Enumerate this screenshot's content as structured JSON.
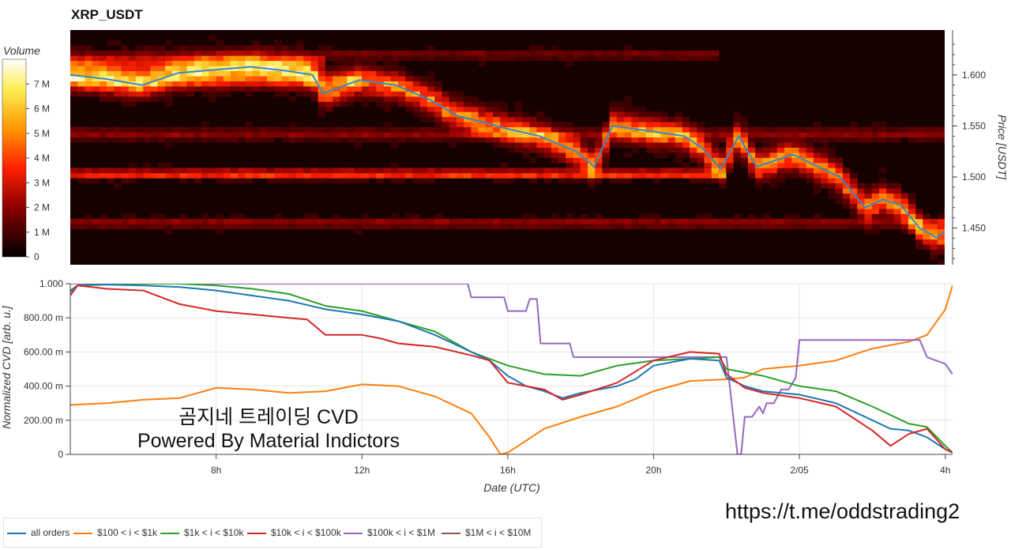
{
  "title": "XRP_USDT",
  "watermark": {
    "line1": "곰지네 트레이딩 CVD",
    "line2": "Powered By Material Indictors"
  },
  "url_text": "https://t.me/oddstrading2",
  "colors": {
    "all_orders": "#1f77b4",
    "s100_1k": "#ff7f0e",
    "s1k_10k": "#2ca02c",
    "s10k_100k": "#d62728",
    "s100k_1m": "#9467bd",
    "s1m_10m": "#8c564b",
    "heatmap_low": "#000000",
    "heatmap_high": "#ffffff"
  },
  "chart_data": [
    {
      "type": "heatmap",
      "title": "XRP_USDT",
      "ylabel": "Price [USDT]",
      "ylim": [
        1.414,
        1.644
      ],
      "yticks": [
        1.45,
        1.5,
        1.55,
        1.6
      ],
      "ytick_labels": [
        "1.450",
        "1.500",
        "1.550",
        "1.600"
      ],
      "colorbar": {
        "label": "Volume",
        "range": [
          0,
          8000000
        ],
        "ticks": [
          0,
          1000000,
          2000000,
          3000000,
          4000000,
          5000000,
          6000000,
          7000000
        ],
        "tick_labels": [
          "0",
          "1 M",
          "2 M",
          "3 M",
          "4 M",
          "5 M",
          "6 M",
          "7 M"
        ]
      },
      "price_series": {
        "x": [
          4.0,
          5.0,
          6.0,
          7.0,
          8.0,
          9.0,
          10.0,
          10.7,
          11.0,
          12.0,
          13.0,
          14.0,
          14.7,
          15.5,
          16.0,
          17.0,
          18.0,
          18.5,
          19.0,
          20.0,
          21.0,
          21.5,
          22.0,
          22.5,
          23.0,
          24.0,
          25.0,
          25.3,
          26.0,
          26.5,
          27.0,
          27.5,
          28.0,
          28.2
        ],
        "y": [
          1.6,
          1.596,
          1.59,
          1.602,
          1.605,
          1.608,
          1.604,
          1.6,
          1.582,
          1.595,
          1.59,
          1.575,
          1.56,
          1.553,
          1.548,
          1.54,
          1.525,
          1.51,
          1.55,
          1.545,
          1.54,
          1.528,
          1.508,
          1.54,
          1.51,
          1.522,
          1.505,
          1.5,
          1.47,
          1.478,
          1.472,
          1.45,
          1.44,
          1.447
        ]
      }
    },
    {
      "type": "line",
      "xlabel": "Date (UTC)",
      "ylabel": "Normalized CVD [arb. u.]",
      "xlim": [
        4.0,
        28.2
      ],
      "ylim": [
        0,
        1
      ],
      "xticks": [
        8,
        12,
        16,
        20,
        24,
        28
      ],
      "xtick_labels": [
        "8h",
        "12h",
        "16h",
        "20h",
        "2/05",
        "4h"
      ],
      "yticks": [
        0,
        0.2,
        0.4,
        0.6,
        0.8,
        1.0
      ],
      "ytick_labels": [
        "0",
        "200.00 m",
        "400.00 m",
        "600.00 m",
        "800.00 m",
        "1.000"
      ],
      "grid": true,
      "legend": "bottom",
      "series": [
        {
          "name": "all orders",
          "color_key": "all_orders",
          "x": [
            4.0,
            4.2,
            5.0,
            6.0,
            7.0,
            8.0,
            9.0,
            10.0,
            11.0,
            12.0,
            13.0,
            14.0,
            15.0,
            15.5,
            16.0,
            16.5,
            17.0,
            17.5,
            18.0,
            19.0,
            19.5,
            20.0,
            21.0,
            21.8,
            22.0,
            22.5,
            23.0,
            24.0,
            25.0,
            26.0,
            26.5,
            27.0,
            27.5,
            28.0,
            28.2
          ],
          "y": [
            0.95,
            0.99,
            0.995,
            0.99,
            0.98,
            0.96,
            0.93,
            0.9,
            0.85,
            0.82,
            0.78,
            0.7,
            0.6,
            0.55,
            0.46,
            0.4,
            0.37,
            0.33,
            0.36,
            0.4,
            0.44,
            0.52,
            0.56,
            0.55,
            0.45,
            0.4,
            0.37,
            0.35,
            0.3,
            0.2,
            0.15,
            0.14,
            0.1,
            0.03,
            0.01
          ]
        },
        {
          "name": "$100 < i < $1k",
          "color_key": "s100_1k",
          "x": [
            4.0,
            5.0,
            6.0,
            7.0,
            8.0,
            9.0,
            10.0,
            11.0,
            12.0,
            13.0,
            14.0,
            15.0,
            15.5,
            15.8,
            16.0,
            16.5,
            17.0,
            18.0,
            19.0,
            20.0,
            21.0,
            22.0,
            22.5,
            23.0,
            24.0,
            25.0,
            26.0,
            27.0,
            27.5,
            28.0,
            28.2
          ],
          "y": [
            0.29,
            0.3,
            0.32,
            0.33,
            0.39,
            0.38,
            0.36,
            0.37,
            0.41,
            0.4,
            0.34,
            0.24,
            0.1,
            0.0,
            0.01,
            0.08,
            0.15,
            0.22,
            0.28,
            0.37,
            0.43,
            0.44,
            0.45,
            0.5,
            0.52,
            0.55,
            0.62,
            0.66,
            0.7,
            0.85,
            0.99
          ]
        },
        {
          "name": "$1k < i < $10k",
          "color_key": "s1k_10k",
          "x": [
            4.0,
            4.2,
            5.0,
            6.0,
            7.0,
            8.0,
            9.0,
            10.0,
            11.0,
            12.0,
            13.0,
            14.0,
            15.0,
            16.0,
            17.0,
            18.0,
            19.0,
            20.0,
            21.0,
            21.8,
            22.0,
            23.0,
            24.0,
            25.0,
            26.0,
            27.0,
            27.5,
            28.0,
            28.2
          ],
          "y": [
            0.96,
            0.99,
            1.0,
            1.0,
            1.0,
            0.99,
            0.97,
            0.94,
            0.87,
            0.84,
            0.78,
            0.72,
            0.6,
            0.52,
            0.47,
            0.46,
            0.52,
            0.55,
            0.56,
            0.57,
            0.5,
            0.46,
            0.4,
            0.37,
            0.28,
            0.18,
            0.16,
            0.05,
            0.01
          ]
        },
        {
          "name": "$10k < i < $100k",
          "color_key": "s10k_100k",
          "x": [
            4.0,
            4.2,
            5.0,
            6.0,
            7.0,
            8.0,
            9.0,
            10.0,
            10.5,
            11.0,
            12.0,
            12.5,
            13.0,
            14.0,
            15.0,
            15.5,
            16.0,
            16.5,
            17.0,
            17.5,
            18.0,
            19.0,
            20.0,
            21.0,
            21.8,
            22.0,
            22.5,
            23.0,
            24.0,
            25.0,
            26.0,
            26.5,
            27.0,
            27.5,
            28.0,
            28.2
          ],
          "y": [
            0.93,
            0.99,
            0.97,
            0.96,
            0.88,
            0.84,
            0.82,
            0.8,
            0.79,
            0.7,
            0.7,
            0.68,
            0.65,
            0.63,
            0.58,
            0.55,
            0.42,
            0.4,
            0.38,
            0.32,
            0.35,
            0.42,
            0.55,
            0.6,
            0.59,
            0.47,
            0.39,
            0.36,
            0.33,
            0.28,
            0.14,
            0.05,
            0.12,
            0.15,
            0.03,
            0.01
          ]
        },
        {
          "name": "$100k < i < $1M",
          "color_key": "s100k_1m",
          "x": [
            4.0,
            14.9,
            15.0,
            15.9,
            16.0,
            16.5,
            16.6,
            16.8,
            16.9,
            17.7,
            17.8,
            21.8,
            22.0,
            22.3,
            22.4,
            22.5,
            22.7,
            22.9,
            23.0,
            23.1,
            23.3,
            23.5,
            23.7,
            23.9,
            24.0,
            27.3,
            27.5,
            28.0,
            28.2
          ],
          "y": [
            1.0,
            1.0,
            0.92,
            0.92,
            0.84,
            0.84,
            0.91,
            0.91,
            0.65,
            0.65,
            0.57,
            0.57,
            0.57,
            0.0,
            0.0,
            0.22,
            0.22,
            0.28,
            0.24,
            0.3,
            0.3,
            0.38,
            0.38,
            0.45,
            0.67,
            0.67,
            0.57,
            0.53,
            0.47
          ]
        },
        {
          "name": "$1M < i < $10M",
          "color_key": "s1m_10m",
          "x": [],
          "y": []
        }
      ]
    }
  ]
}
